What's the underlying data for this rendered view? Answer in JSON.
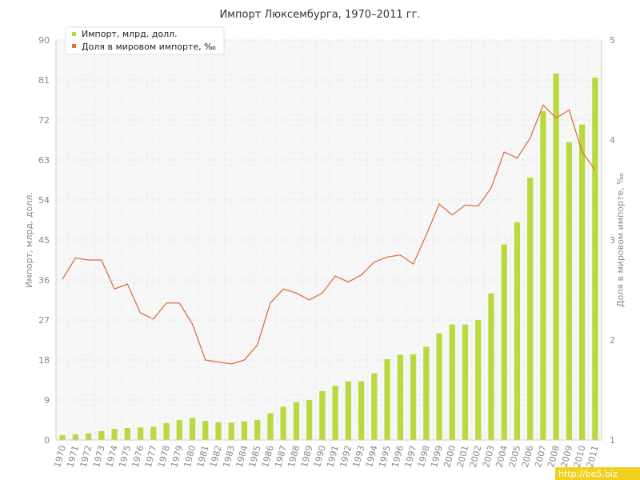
{
  "chart_data": {
    "type": "bar",
    "title": "Импорт Люксембурга, 1970–2011 гг.",
    "ylabel": "Импорт, млрд. долл.",
    "y2label": "Доля в мировом импорте, ‰",
    "ylim": [
      0,
      90
    ],
    "y2lim": [
      1,
      5
    ],
    "yticks": [
      "0",
      "9",
      "18",
      "27",
      "36",
      "45",
      "54",
      "63",
      "72",
      "81",
      "90"
    ],
    "y2ticks": [
      "1",
      "2",
      "3",
      "4",
      "5"
    ],
    "categories": [
      "1970",
      "1971",
      "1972",
      "1973",
      "1974",
      "1975",
      "1976",
      "1977",
      "1978",
      "1979",
      "1980",
      "1981",
      "1982",
      "1983",
      "1984",
      "1985",
      "1986",
      "1987",
      "1988",
      "1989",
      "1990",
      "1991",
      "1992",
      "1993",
      "1994",
      "1995",
      "1996",
      "1997",
      "1998",
      "1999",
      "2000",
      "2001",
      "2002",
      "2003",
      "2004",
      "2005",
      "2006",
      "2007",
      "2008",
      "2009",
      "2010",
      "2011"
    ],
    "series": [
      {
        "name": "Импорт, млрд. долл.",
        "type": "bar",
        "axis": "left",
        "color": "#b9d940",
        "values": [
          1.1,
          1.3,
          1.5,
          2.0,
          2.5,
          2.7,
          2.8,
          3.0,
          3.8,
          4.5,
          5.0,
          4.3,
          4.0,
          3.9,
          4.2,
          4.5,
          6.0,
          7.5,
          8.5,
          9.0,
          11.0,
          12.2,
          13.2,
          13.2,
          15.0,
          18.2,
          19.2,
          19.3,
          21.0,
          24.0,
          26.0,
          26.0,
          27.0,
          33.0,
          44.0,
          49.0,
          59.0,
          74.0,
          82.5,
          67.0,
          71.0,
          81.5
        ]
      },
      {
        "name": "Доля в мировом импорте, ‰",
        "type": "line",
        "axis": "right",
        "color": "#e07040",
        "values": [
          2.61,
          2.82,
          2.8,
          2.8,
          2.51,
          2.56,
          2.27,
          2.21,
          2.37,
          2.37,
          2.16,
          1.8,
          1.78,
          1.76,
          1.8,
          1.95,
          2.37,
          2.51,
          2.47,
          2.4,
          2.47,
          2.64,
          2.58,
          2.65,
          2.78,
          2.83,
          2.85,
          2.76,
          3.05,
          3.36,
          3.25,
          3.35,
          3.34,
          3.52,
          3.88,
          3.82,
          4.02,
          4.35,
          4.22,
          4.3,
          3.88,
          3.7
        ]
      }
    ],
    "legend_position": "top-left",
    "grid": true
  },
  "watermark": "http://be5.biz"
}
